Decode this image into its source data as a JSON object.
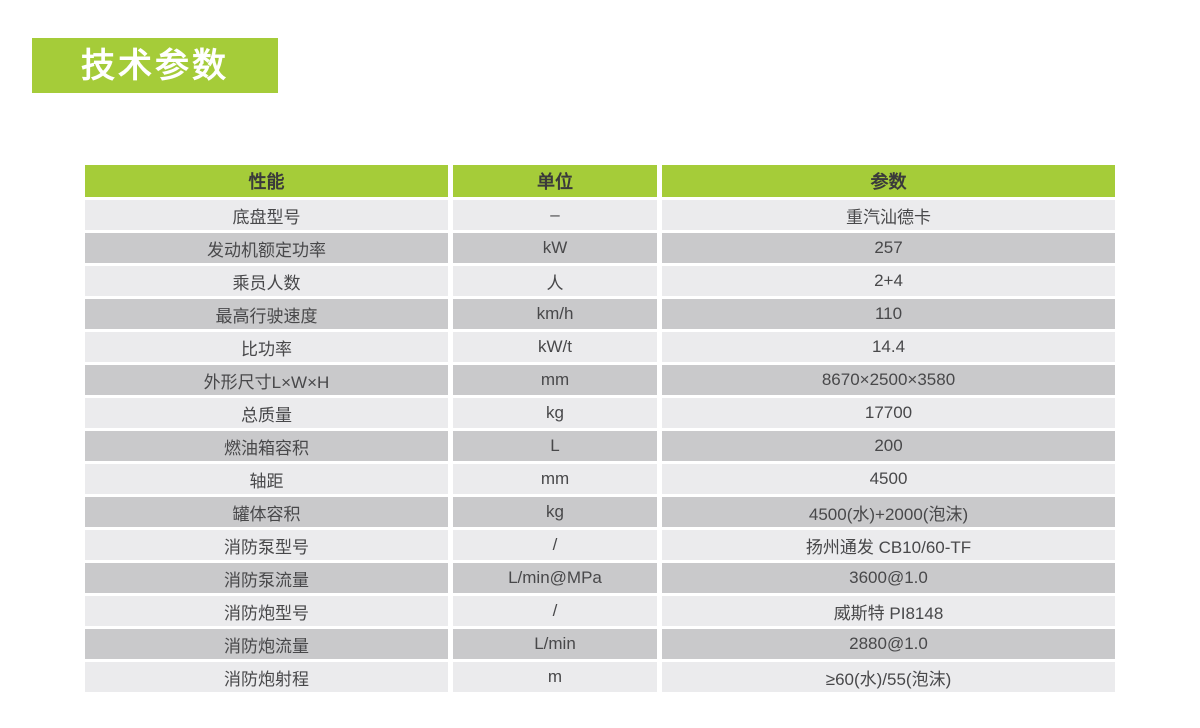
{
  "page_title": "技术参数",
  "colors": {
    "accent_green": "#a5cc39",
    "row_light": "#ebebed",
    "row_alt": "#c9c9cb",
    "header_text": "#3a3a3b",
    "cell_text": "#48484a",
    "title_text": "#ffffff"
  },
  "table": {
    "columns": [
      "性能",
      "单位",
      "参数"
    ],
    "rows": [
      [
        "底盘型号",
        "–",
        "重汽汕德卡"
      ],
      [
        "发动机额定功率",
        "kW",
        "257"
      ],
      [
        "乘员人数",
        "人",
        "2+4"
      ],
      [
        "最高行驶速度",
        "km/h",
        "110"
      ],
      [
        "比功率",
        "kW/t",
        "14.4"
      ],
      [
        "外形尺寸L×W×H",
        "mm",
        "8670×2500×3580"
      ],
      [
        "总质量",
        "kg",
        "17700"
      ],
      [
        "燃油箱容积",
        "L",
        "200"
      ],
      [
        "轴距",
        "mm",
        "4500"
      ],
      [
        "罐体容积",
        "kg",
        "4500(水)+2000(泡沫)"
      ],
      [
        "消防泵型号",
        "/",
        "扬州通发 CB10/60-TF"
      ],
      [
        "消防泵流量",
        "L/min@MPa",
        "3600@1.0"
      ],
      [
        "消防炮型号",
        "/",
        "威斯特 PI8148"
      ],
      [
        "消防炮流量",
        "L/min",
        "2880@1.0"
      ],
      [
        "消防炮射程",
        "m",
        "≥60(水)/55(泡沫)"
      ]
    ]
  }
}
